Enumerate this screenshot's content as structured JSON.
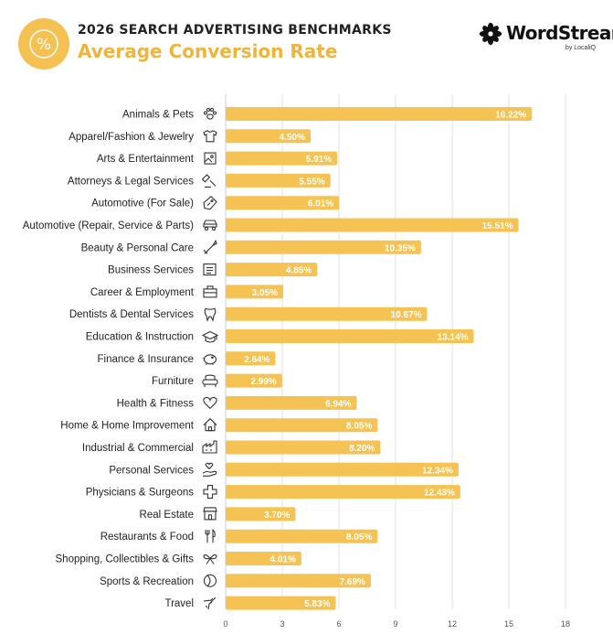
{
  "header": {
    "kicker": "2026 SEARCH ADVERTISING BENCHMARKS",
    "title": "Average Conversion Rate",
    "badge_symbol": "%",
    "brand_name": "WordStream",
    "brand_sub": "by LocaliQ"
  },
  "colors": {
    "bar": "#f5c353",
    "accent": "#f0b43a",
    "grid": "#e2e2e2",
    "text": "#222222"
  },
  "chart_data": {
    "type": "bar",
    "orientation": "horizontal",
    "title": "Average Conversion Rate",
    "categories": [
      "Animals & Pets",
      "Apparel/Fashion & Jewelry",
      "Arts & Entertainment",
      "Attorneys & Legal Services",
      "Automotive (For Sale)",
      "Automotive (Repair, Service & Parts)",
      "Beauty & Personal Care",
      "Business Services",
      "Career & Employment",
      "Dentists & Dental Services",
      "Education & Instruction",
      "Finance & Insurance",
      "Furniture",
      "Health & Fitness",
      "Home & Home Improvement",
      "Industrial & Commercial",
      "Personal Services",
      "Physicians & Surgeons",
      "Real Estate",
      "Restaurants & Food",
      "Shopping, Collectibles & Gifts",
      "Sports & Recreation",
      "Travel"
    ],
    "icons": [
      "paw-icon",
      "shirt-icon",
      "picture-icon",
      "gavel-icon",
      "price-tag-icon",
      "car-icon",
      "brush-icon",
      "document-icon",
      "briefcase-icon",
      "tooth-icon",
      "graduation-cap-icon",
      "piggy-bank-icon",
      "armchair-icon",
      "heart-icon",
      "house-icon",
      "factory-icon",
      "hand-heart-icon",
      "medical-cross-icon",
      "storefront-icon",
      "utensils-icon",
      "gift-bow-icon",
      "ball-icon",
      "airplane-icon"
    ],
    "values": [
      16.22,
      4.5,
      5.91,
      5.55,
      6.01,
      15.51,
      10.35,
      4.85,
      3.05,
      10.67,
      13.14,
      2.64,
      2.99,
      6.94,
      8.05,
      8.2,
      12.34,
      12.43,
      3.7,
      8.05,
      4.01,
      7.69,
      5.83
    ],
    "value_labels": [
      "16.22%",
      "4.50%",
      "5.91%",
      "5.55%",
      "6.01%",
      "15.51%",
      "10.35%",
      "4.85%",
      "3.05%",
      "10.67%",
      "13.14%",
      "2.64%",
      "2.99%",
      "6.94%",
      "8.05%",
      "8.20%",
      "12.34%",
      "12.43%",
      "3.70%",
      "8.05%",
      "4.01%",
      "7.69%",
      "5.83%"
    ],
    "xlim": [
      0,
      18
    ],
    "xticks": [
      0,
      3,
      6,
      9,
      12,
      15,
      18
    ],
    "grid": true
  }
}
